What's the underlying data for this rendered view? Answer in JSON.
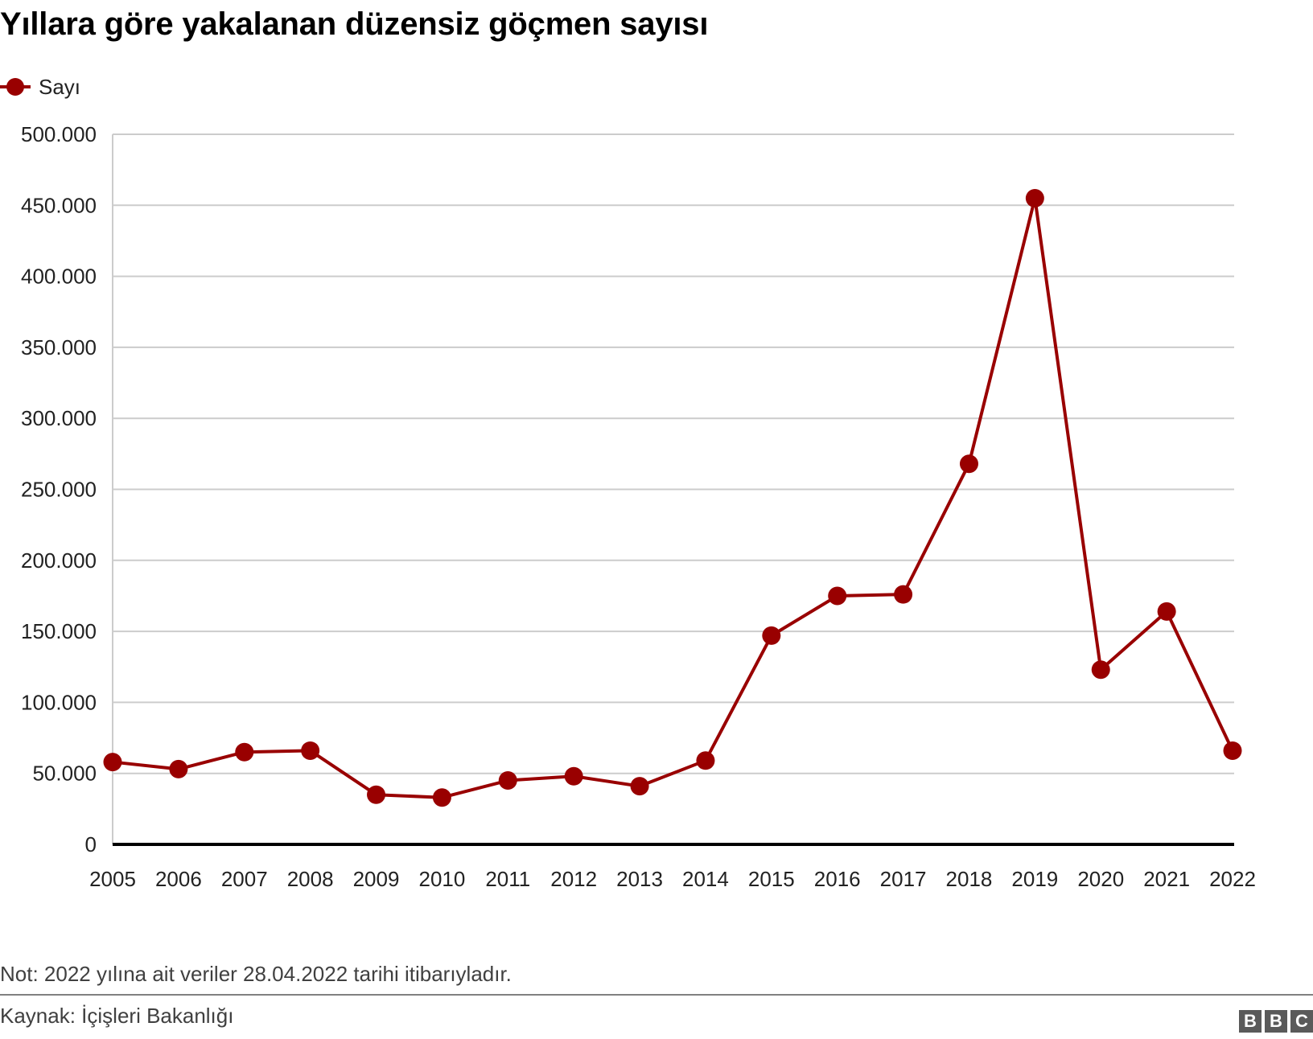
{
  "header": {
    "title": "Yıllara göre yakalanan düzensiz göçmen sayısı"
  },
  "legend": {
    "label": "Sayı",
    "color": "#990000"
  },
  "footer": {
    "note": "Not: 2022 yılına ait veriler 28.04.2022 tarihi itibarıyladır.",
    "source": "Kaynak: İçişleri Bakanlığı",
    "logo_letters": [
      "B",
      "B",
      "C"
    ]
  },
  "colors": {
    "series": "#990000",
    "grid": "#cccccc",
    "axis": "#000000"
  },
  "chart_data": {
    "type": "line",
    "title": "Yıllara göre yakalanan düzensiz göçmen sayısı",
    "xlabel": "",
    "ylabel": "",
    "categories": [
      "2005",
      "2006",
      "2007",
      "2008",
      "2009",
      "2010",
      "2011",
      "2012",
      "2013",
      "2014",
      "2015",
      "2016",
      "2017",
      "2018",
      "2019",
      "2020",
      "2021",
      "2022"
    ],
    "series": [
      {
        "name": "Sayı",
        "color": "#990000",
        "values": [
          58000,
          53000,
          65000,
          66000,
          35000,
          33000,
          45000,
          48000,
          41000,
          59000,
          147000,
          175000,
          176000,
          268000,
          455000,
          123000,
          164000,
          66000
        ]
      }
    ],
    "ylim": [
      0,
      500000
    ],
    "yticks": [
      0,
      50000,
      100000,
      150000,
      200000,
      250000,
      300000,
      350000,
      400000,
      450000,
      500000
    ],
    "ytick_labels": [
      "0",
      "50.000",
      "100.000",
      "150.000",
      "200.000",
      "250.000",
      "300.000",
      "350.000",
      "400.000",
      "450.000",
      "500.000"
    ],
    "grid": true,
    "legend_position": "top-left"
  }
}
